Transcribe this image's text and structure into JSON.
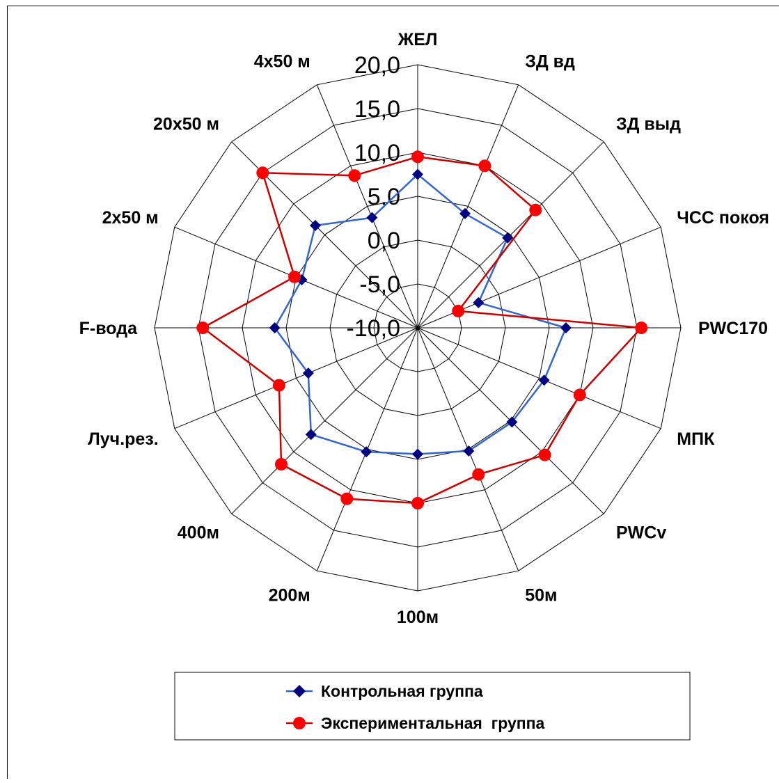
{
  "chart_data": {
    "type": "radar",
    "categories": [
      "ЖЕЛ",
      "ЗД вд",
      "ЗД выд",
      "ЧСС покоя",
      "PWC170",
      "МПК",
      "PWCv",
      "50м",
      "100м",
      "200м",
      "400м",
      "Луч.рез.",
      "F-вода",
      "2х50 м",
      "20х50 м",
      "4х50 м"
    ],
    "r_ticks": [
      "20,0",
      "15,0",
      "10,0",
      "5,0",
      "0,0",
      "-5,0",
      "-10,0"
    ],
    "r_range": [
      -10,
      20
    ],
    "grid": true,
    "legend_position": "bottom",
    "series": [
      {
        "name": "Контрольная группа",
        "color": "#000080",
        "line_color": "#3366cc",
        "marker": "diamond",
        "values": [
          7.5,
          4.1,
          4.5,
          -2.5,
          6.9,
          5.6,
          5.2,
          5.2,
          4.4,
          5.3,
          7.2,
          3.5,
          6.3,
          4.3,
          6.5,
          3.6
        ]
      },
      {
        "name": "Экспериментальная  группа",
        "color": "#ff0000",
        "line_color": "#cc0000",
        "marker": "circle",
        "values": [
          9.5,
          10.0,
          9.0,
          -5.0,
          15.5,
          10.0,
          10.5,
          8.1,
          10.0,
          11.1,
          12.0,
          7.1,
          14.5,
          5.2,
          15.0,
          8.8
        ]
      }
    ]
  }
}
